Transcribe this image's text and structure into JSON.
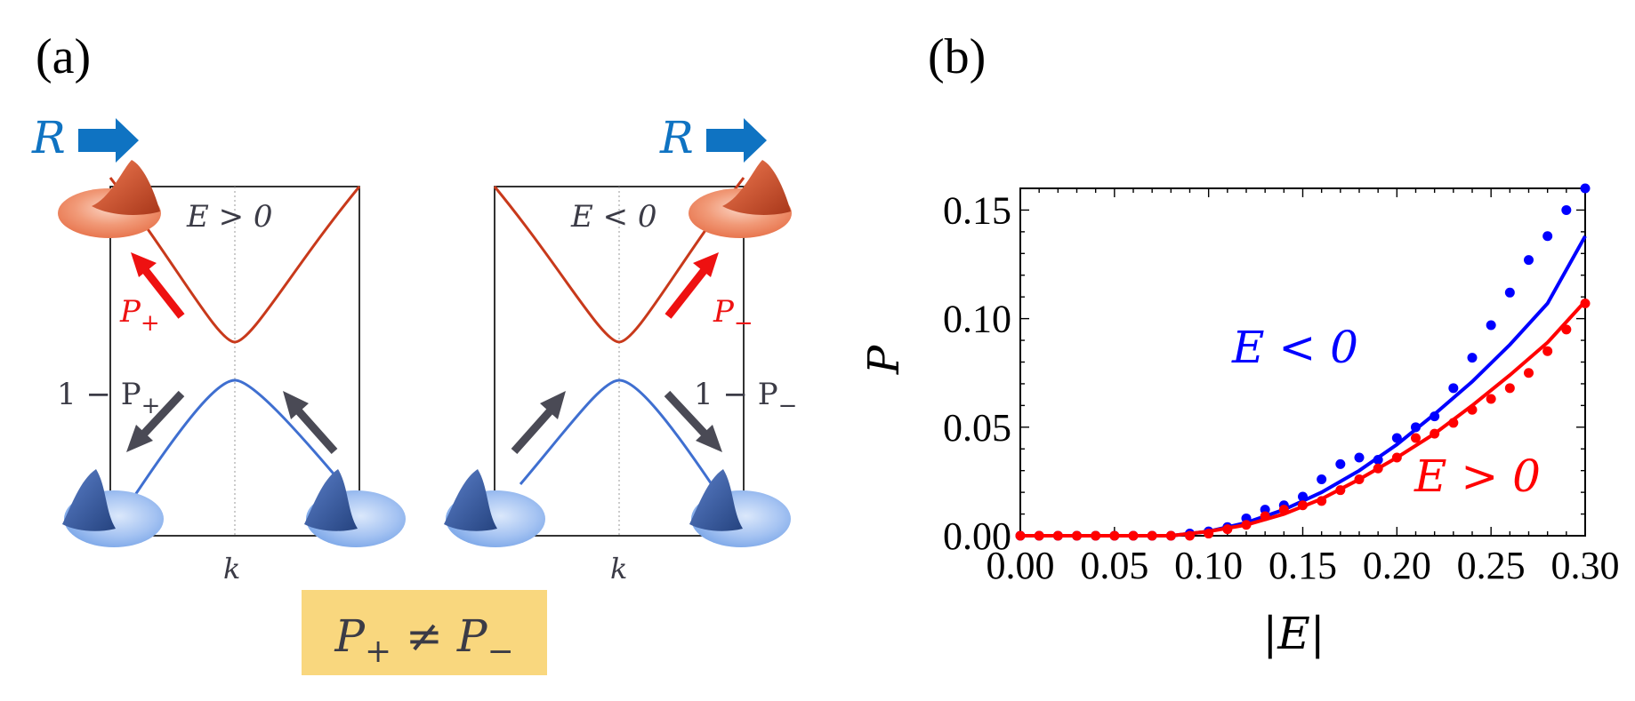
{
  "panel_a": {
    "label": "(a)",
    "left": {
      "R_label": "R",
      "energy_label": "E > 0",
      "transition_label": "P",
      "transition_sub": "+",
      "complement_label": "1 − P",
      "complement_sub": "+",
      "axis_label": "k"
    },
    "right": {
      "R_label": "R",
      "energy_label": "E < 0",
      "transition_label": "P",
      "transition_sub": "−",
      "complement_label": "1 − P",
      "complement_sub": "−",
      "axis_label": "k"
    },
    "inequality_box": {
      "text_p1": "P",
      "sub1": "+",
      "neq": " ≠ ",
      "text_p2": "P",
      "sub2": "−",
      "color": "#f9d77e"
    },
    "colors": {
      "upper_band": "#c8391b",
      "lower_band": "#3f6fd0",
      "R_arrow": "#0f73c2",
      "red_arrow": "#ee1111",
      "dark_arrow": "#4a4a55",
      "upper_blob": "#e8764f",
      "lower_blob": "#7aa6e8"
    }
  },
  "panel_b": {
    "label": "(b)",
    "annotations": {
      "neg": "E < 0",
      "pos": "E > 0"
    }
  },
  "chart_data": {
    "type": "scatter",
    "title": "",
    "xlabel": "|E|",
    "ylabel": "P",
    "xlim": [
      0,
      0.3
    ],
    "ylim": [
      0,
      0.16
    ],
    "x_ticks": [
      "0.00",
      "0.05",
      "0.10",
      "0.15",
      "0.20",
      "0.25",
      "0.30"
    ],
    "y_ticks": [
      "0.00",
      "0.05",
      "0.10",
      "0.15"
    ],
    "series": [
      {
        "name": "E < 0",
        "color": "#0000ff",
        "points_x": [
          0.0,
          0.01,
          0.02,
          0.03,
          0.04,
          0.05,
          0.06,
          0.07,
          0.08,
          0.09,
          0.1,
          0.11,
          0.12,
          0.13,
          0.14,
          0.15,
          0.16,
          0.17,
          0.18,
          0.19,
          0.2,
          0.21,
          0.22,
          0.23,
          0.24,
          0.25,
          0.26,
          0.27,
          0.28,
          0.29,
          0.3
        ],
        "points_y": [
          0.0,
          0.0,
          0.0,
          0.0,
          0.0,
          0.0,
          0.0,
          0.0,
          0.0,
          0.001,
          0.002,
          0.004,
          0.008,
          0.012,
          0.014,
          0.018,
          0.026,
          0.033,
          0.036,
          0.035,
          0.045,
          0.05,
          0.055,
          0.068,
          0.082,
          0.097,
          0.112,
          0.127,
          0.138,
          0.15,
          0.16
        ],
        "fit_x": [
          0.0,
          0.08,
          0.1,
          0.12,
          0.14,
          0.16,
          0.18,
          0.2,
          0.22,
          0.24,
          0.26,
          0.28,
          0.3
        ],
        "fit_y": [
          0.0,
          0.0,
          0.002,
          0.006,
          0.012,
          0.02,
          0.03,
          0.042,
          0.056,
          0.071,
          0.088,
          0.107,
          0.138
        ]
      },
      {
        "name": "E > 0",
        "color": "#ff0000",
        "points_x": [
          0.0,
          0.01,
          0.02,
          0.03,
          0.04,
          0.05,
          0.06,
          0.07,
          0.08,
          0.09,
          0.1,
          0.11,
          0.12,
          0.13,
          0.14,
          0.15,
          0.16,
          0.17,
          0.18,
          0.19,
          0.2,
          0.21,
          0.22,
          0.23,
          0.24,
          0.25,
          0.26,
          0.27,
          0.28,
          0.29,
          0.3
        ],
        "points_y": [
          0.0,
          0.0,
          0.0,
          0.0,
          0.0,
          0.0,
          0.0,
          0.0,
          0.0,
          0.0,
          0.001,
          0.003,
          0.005,
          0.009,
          0.012,
          0.014,
          0.016,
          0.021,
          0.026,
          0.031,
          0.036,
          0.045,
          0.047,
          0.052,
          0.058,
          0.063,
          0.068,
          0.075,
          0.085,
          0.095,
          0.107
        ],
        "fit_x": [
          0.0,
          0.08,
          0.1,
          0.12,
          0.14,
          0.16,
          0.18,
          0.2,
          0.22,
          0.24,
          0.26,
          0.28,
          0.3
        ],
        "fit_y": [
          0.0,
          0.0,
          0.002,
          0.005,
          0.01,
          0.017,
          0.026,
          0.036,
          0.047,
          0.06,
          0.074,
          0.089,
          0.108
        ]
      }
    ],
    "grid": false,
    "legend": "none"
  }
}
